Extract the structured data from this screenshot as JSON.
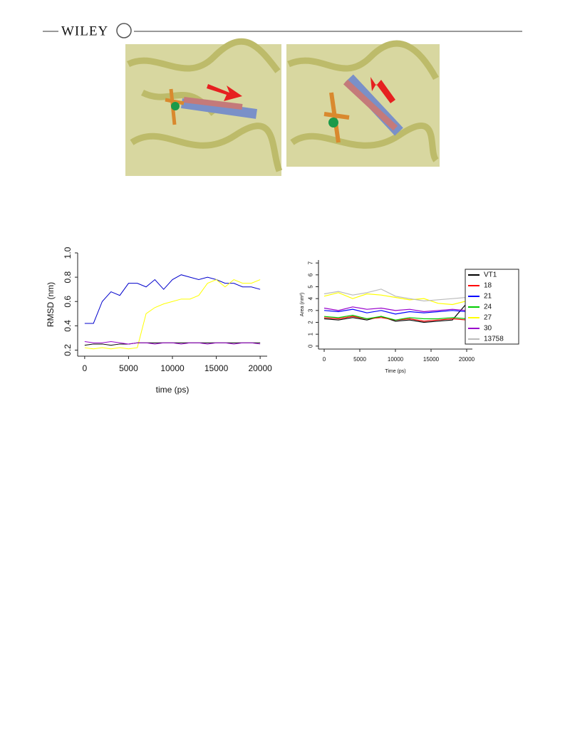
{
  "header": {
    "publisher": "WILEY"
  },
  "chart_data": [
    {
      "type": "line",
      "ylabel": "RMSD (nm)",
      "xlabel": "time (ps)",
      "x": [
        0,
        1000,
        2000,
        3000,
        4000,
        5000,
        6000,
        7000,
        8000,
        9000,
        10000,
        11000,
        12000,
        13000,
        14000,
        15000,
        16000,
        17000,
        18000,
        19000,
        20000
      ],
      "xlim": [
        -800,
        20800
      ],
      "xticks": [
        0,
        5000,
        10000,
        15000,
        20000
      ],
      "ylim": [
        0.15,
        1.0
      ],
      "yticks": [
        0.2,
        0.4,
        0.6,
        0.8,
        {
          "value": 1,
          "label": "1.0"
        }
      ],
      "series": [
        {
          "color": "#0000cc",
          "values": [
            0.42,
            0.42,
            0.6,
            0.68,
            0.65,
            0.75,
            0.75,
            0.72,
            0.78,
            0.7,
            0.78,
            0.82,
            0.8,
            0.78,
            0.8,
            0.78,
            0.75,
            0.75,
            0.72,
            0.72,
            0.7
          ]
        },
        {
          "color": "#ffff00",
          "values": [
            0.22,
            0.21,
            0.22,
            0.21,
            0.22,
            0.21,
            0.22,
            0.5,
            0.55,
            0.58,
            0.6,
            0.62,
            0.62,
            0.65,
            0.75,
            0.78,
            0.72,
            0.78,
            0.75,
            0.75,
            0.78
          ]
        },
        {
          "color": "#000000",
          "values": [
            0.24,
            0.25,
            0.25,
            0.24,
            0.25,
            0.25,
            0.26,
            0.26,
            0.26,
            0.26,
            0.26,
            0.26,
            0.26,
            0.26,
            0.26,
            0.26,
            0.26,
            0.26,
            0.26,
            0.26,
            0.26
          ]
        },
        {
          "color": "#9900cc",
          "values": [
            0.27,
            0.26,
            0.26,
            0.27,
            0.26,
            0.25,
            0.26,
            0.26,
            0.25,
            0.26,
            0.26,
            0.25,
            0.26,
            0.26,
            0.25,
            0.26,
            0.26,
            0.25,
            0.26,
            0.26,
            0.25
          ]
        }
      ]
    },
    {
      "type": "line",
      "ylabel": "Area (nm²)",
      "xlabel": "Time (ps)",
      "x": [
        0,
        2000,
        4000,
        6000,
        8000,
        10000,
        12000,
        14000,
        16000,
        18000,
        20000
      ],
      "xlim": [
        -800,
        20800
      ],
      "xticks": [
        0,
        5000,
        10000,
        15000,
        20000
      ],
      "ylim": [
        -0.25,
        7.25
      ],
      "yticks": [
        0,
        1,
        2,
        3,
        4,
        5,
        6,
        7
      ],
      "legend": "top-right",
      "series": [
        {
          "name": "VT1",
          "color": "#000000",
          "values": [
            2.3,
            2.2,
            2.4,
            2.2,
            2.5,
            2.1,
            2.2,
            2.0,
            2.1,
            2.2,
            3.6
          ]
        },
        {
          "name": "18",
          "color": "#ff0000",
          "values": [
            2.4,
            2.3,
            2.5,
            2.3,
            2.4,
            2.2,
            2.3,
            2.1,
            2.2,
            2.3,
            2.2
          ]
        },
        {
          "name": "21",
          "color": "#0000ff",
          "values": [
            3.0,
            2.9,
            3.1,
            2.8,
            3.0,
            2.7,
            2.9,
            2.8,
            2.9,
            3.0,
            2.9
          ]
        },
        {
          "name": "24",
          "color": "#00cc00",
          "values": [
            2.5,
            2.4,
            2.6,
            2.3,
            2.5,
            2.2,
            2.4,
            2.3,
            2.3,
            2.4,
            2.3
          ]
        },
        {
          "name": "27",
          "color": "#ffff00",
          "values": [
            4.2,
            4.5,
            4.0,
            4.4,
            4.3,
            4.1,
            3.9,
            4.0,
            3.6,
            3.5,
            3.8
          ]
        },
        {
          "name": "30",
          "color": "#9900cc",
          "values": [
            3.2,
            3.0,
            3.3,
            3.1,
            3.2,
            3.0,
            3.1,
            2.9,
            3.0,
            3.1,
            3.0
          ]
        },
        {
          "name": "13758",
          "color": "#bbbbbb",
          "values": [
            4.4,
            4.6,
            4.3,
            4.5,
            4.8,
            4.2,
            4.0,
            3.8,
            3.9,
            4.0,
            4.1
          ]
        }
      ]
    }
  ]
}
